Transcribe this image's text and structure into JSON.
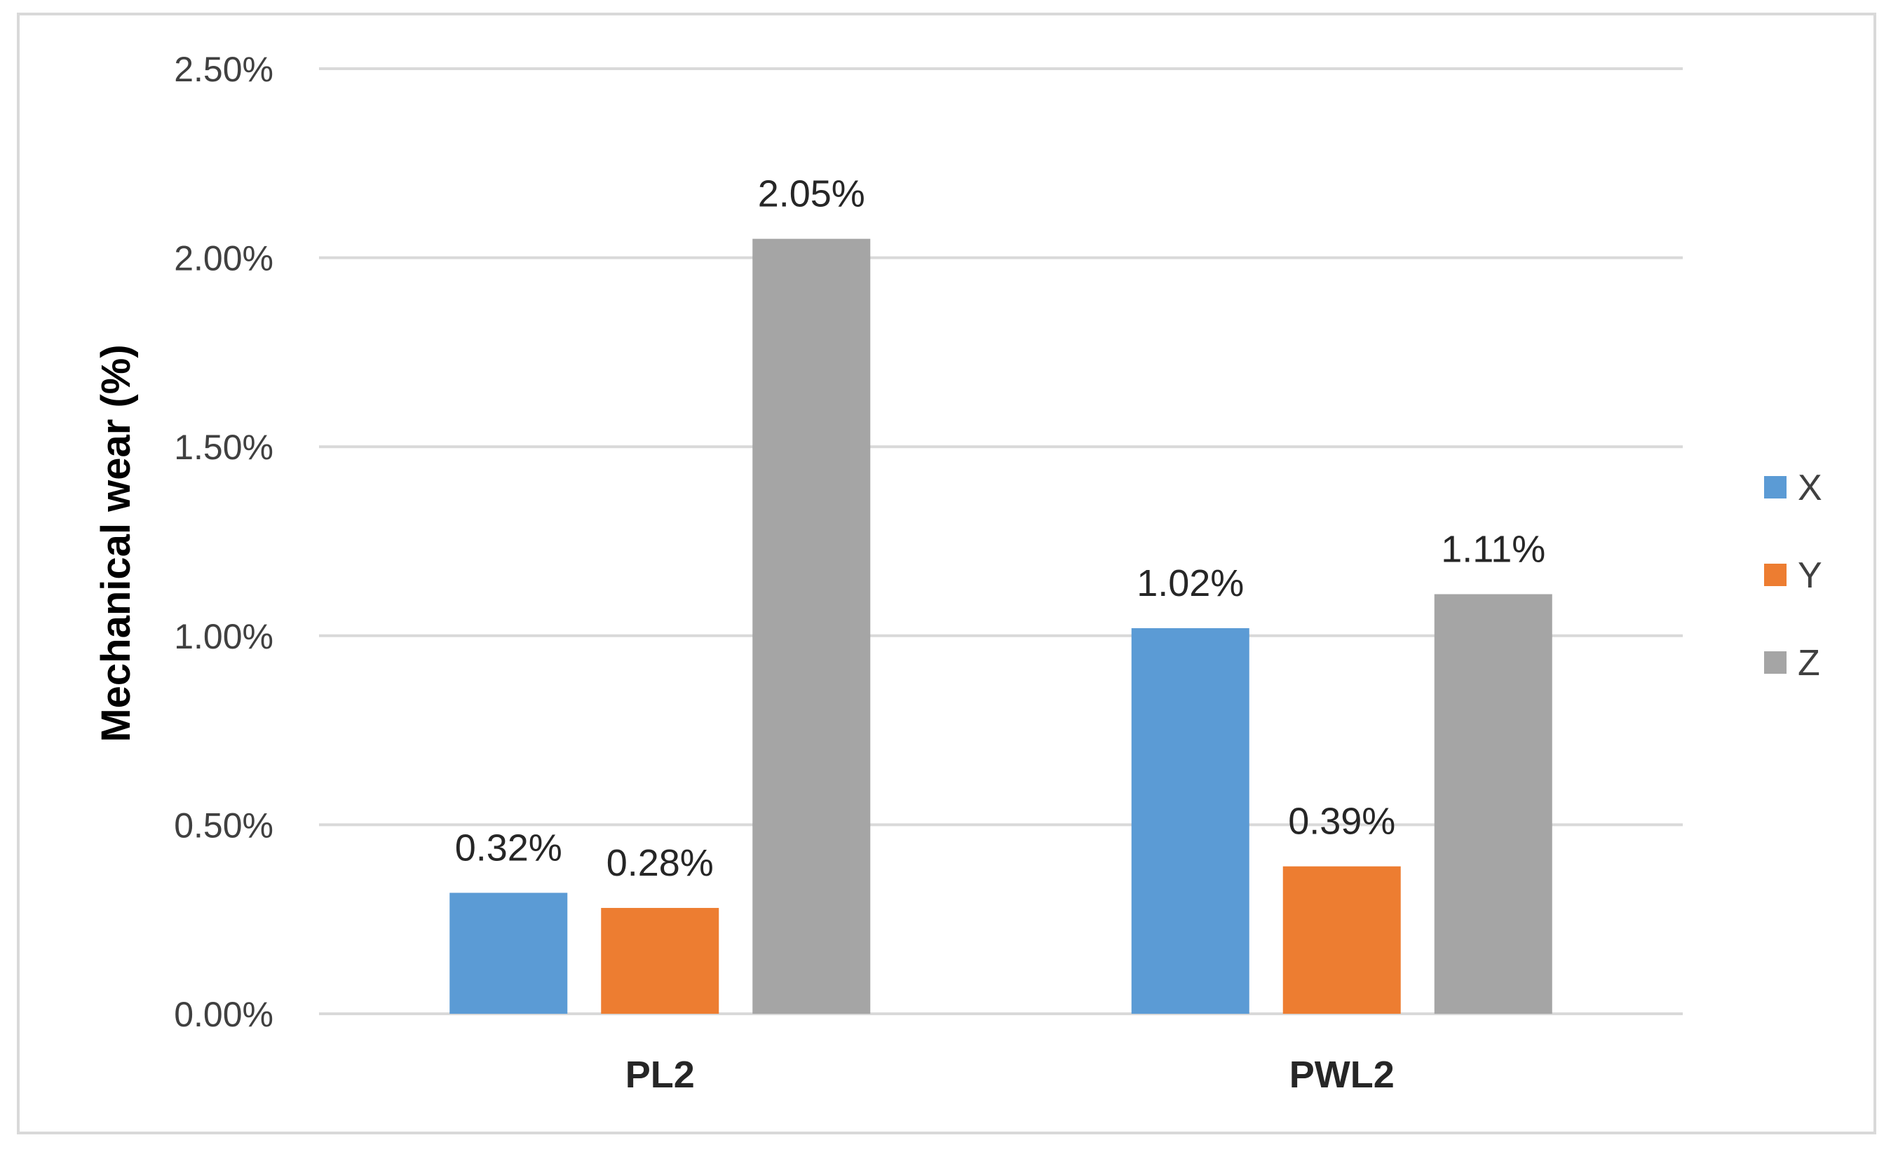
{
  "chart_data": {
    "type": "bar",
    "title": "",
    "xlabel": "",
    "ylabel": "Mechanical wear (%)",
    "ylim": [
      0,
      2.5
    ],
    "yticks": [
      0,
      0.5,
      1.0,
      1.5,
      2.0,
      2.5
    ],
    "ytick_labels": [
      "0.00%",
      "0.50%",
      "1.00%",
      "1.50%",
      "2.00%",
      "2.50%"
    ],
    "categories": [
      "PL2",
      "PWL2"
    ],
    "series": [
      {
        "name": "X",
        "color": "#5b9bd5",
        "values": [
          0.32,
          1.02
        ],
        "labels": [
          "0.32%",
          "1.02%"
        ]
      },
      {
        "name": "Y",
        "color": "#ed7d31",
        "values": [
          0.28,
          0.39
        ],
        "labels": [
          "0.28%",
          "0.39%"
        ]
      },
      {
        "name": "Z",
        "color": "#a5a5a5",
        "values": [
          2.05,
          1.11
        ],
        "labels": [
          "2.05%",
          "1.11%"
        ]
      }
    ],
    "grid": true,
    "gridline_color": "#d9d9d9",
    "legend_position": "right"
  }
}
